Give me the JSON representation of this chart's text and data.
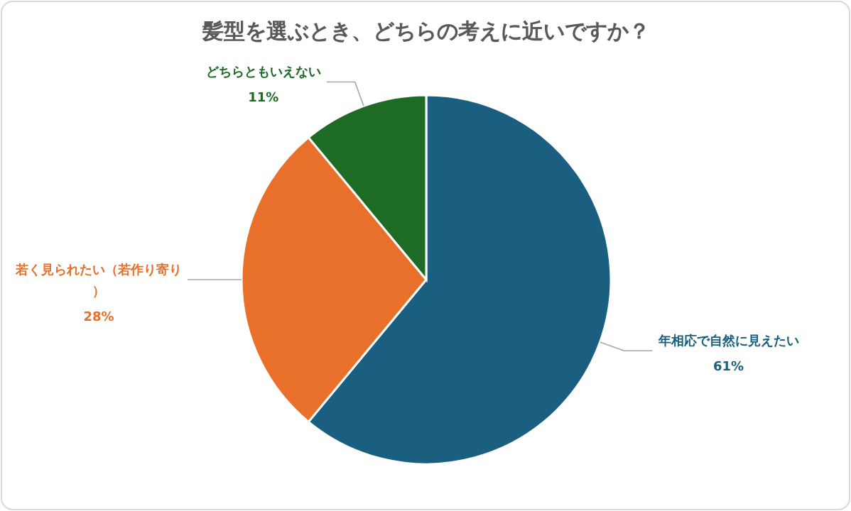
{
  "chart_data": {
    "type": "pie",
    "title": "髪型を選ぶとき、どちらの考えに近いですか？",
    "categories": [
      "年相応で自然に見えたい",
      "若く見られたい（若作り寄り）",
      "どちらともいえない"
    ],
    "values": [
      61,
      28,
      11
    ],
    "colors": [
      "#1a5f80",
      "#e8702a",
      "#1e6b25"
    ],
    "value_labels": [
      "61%",
      "28%",
      "11%"
    ]
  }
}
